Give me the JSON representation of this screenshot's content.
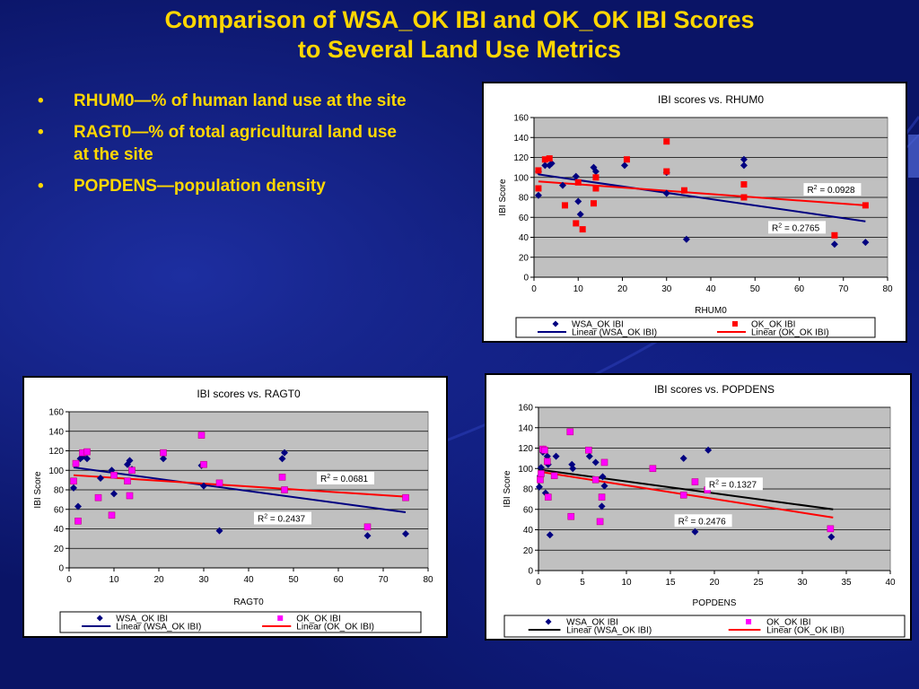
{
  "slide": {
    "title_line1": "Comparison of WSA_OK IBI and OK_OK IBI Scores",
    "title_line2": "to Several Land Use Metrics",
    "bullets": [
      "RHUM0—% of human land use at the site",
      "RAGT0—% of total agricultural land use at the site",
      "POPDENS—population density"
    ],
    "bullet_symbol": "•"
  },
  "colors": {
    "background": "#0a1466",
    "title": "#ffd700",
    "plot_area": "#c0c0c0",
    "wsa_marker": "#000080",
    "ok_marker_chart1": "#ff0000",
    "ok_marker_chart2_3": "#ff00ff",
    "trend_ok": "#ff0000",
    "trend_wsa_chart1_2": "#000080",
    "trend_wsa_chart3": "#000000"
  },
  "chart_data": [
    {
      "type": "scatter",
      "title": "IBI scores vs. RHUM0",
      "xlabel": "RHUM0",
      "ylabel": "IBI Score",
      "xlim": [
        0,
        80
      ],
      "ylim": [
        0,
        160
      ],
      "xticks": [
        0,
        10,
        20,
        30,
        40,
        50,
        60,
        70,
        80
      ],
      "yticks": [
        0,
        20,
        40,
        60,
        80,
        100,
        120,
        140,
        160
      ],
      "grid": true,
      "legend": "bottom",
      "series": [
        {
          "name": "WSA_OK IBI",
          "marker": "diamond",
          "x": [
            1,
            1,
            2.5,
            3.5,
            4,
            6.5,
            9.5,
            10,
            10.5,
            13.5,
            14,
            20.5,
            30,
            30,
            34.5,
            47.5,
            47.5,
            68,
            75
          ],
          "y": [
            106,
            82,
            112,
            112,
            114,
            92,
            101,
            76,
            63,
            110,
            106,
            112,
            84,
            105,
            38,
            112,
            118,
            33,
            35
          ]
        },
        {
          "name": "OK_OK IBI",
          "marker": "square",
          "x": [
            1,
            1,
            2.5,
            3.5,
            7,
            9.5,
            10,
            11,
            13.5,
            14,
            14,
            21,
            30,
            30,
            34,
            47.5,
            47.5,
            68,
            75
          ],
          "y": [
            107,
            89,
            118,
            119,
            72,
            54,
            95,
            48,
            74,
            89,
            100,
            118,
            106,
            136,
            87,
            80,
            93,
            42,
            72
          ]
        },
        {
          "name": "Linear (WSA_OK IBI)",
          "type": "line",
          "x": [
            1,
            75
          ],
          "y": [
            103,
            56
          ]
        },
        {
          "name": "Linear (OK_OK IBI)",
          "type": "line",
          "x": [
            1,
            75
          ],
          "y": [
            96,
            72
          ]
        }
      ],
      "annotations": [
        {
          "text": "R2 = 0.0928",
          "label": "R",
          "sup": "2",
          "value": " = 0.0928",
          "at": [
            74,
            88
          ]
        },
        {
          "text": "R2 = 0.2765",
          "label": "R",
          "sup": "2",
          "value": " = 0.2765",
          "at": [
            66,
            50
          ]
        }
      ]
    },
    {
      "type": "scatter",
      "title": "IBI scores vs. RAGT0",
      "xlabel": "RAGT0",
      "ylabel": "IBI Score",
      "xlim": [
        0,
        80
      ],
      "ylim": [
        0,
        160
      ],
      "xticks": [
        0,
        10,
        20,
        30,
        40,
        50,
        60,
        70,
        80
      ],
      "yticks": [
        0,
        20,
        40,
        60,
        80,
        100,
        120,
        140,
        160
      ],
      "grid": true,
      "legend": "bottom",
      "series": [
        {
          "name": "WSA_OK IBI",
          "marker": "diamond",
          "x": [
            1,
            1.5,
            2,
            2.5,
            3,
            4,
            7,
            9.5,
            10,
            13,
            13.5,
            14,
            21,
            29.5,
            30,
            33.5,
            47.5,
            48,
            66.5,
            75
          ],
          "y": [
            82,
            106,
            63,
            112,
            114,
            112,
            92,
            100,
            76,
            106,
            110,
            101,
            112,
            105,
            84,
            38,
            112,
            118,
            33,
            35
          ]
        },
        {
          "name": "OK_OK IBI",
          "marker": "square",
          "x": [
            1,
            1.5,
            2,
            3,
            4,
            6.5,
            9.5,
            10,
            13,
            13.5,
            14,
            21,
            29.5,
            30,
            33.5,
            47.5,
            48,
            66.5,
            75
          ],
          "y": [
            89,
            107,
            48,
            118,
            119,
            72,
            54,
            95,
            89,
            74,
            100,
            118,
            136,
            106,
            87,
            93,
            80,
            42,
            72
          ]
        },
        {
          "name": "Linear (WSA_OK IBI)",
          "type": "line",
          "x": [
            1,
            75
          ],
          "y": [
            103,
            57
          ]
        },
        {
          "name": "Linear (OK_OK IBI)",
          "type": "line",
          "x": [
            1,
            75
          ],
          "y": [
            95,
            73
          ]
        }
      ],
      "annotations": [
        {
          "text": "R2 = 0.0681",
          "label": "R",
          "sup": "2",
          "value": " = 0.0681",
          "at": [
            68,
            92
          ]
        },
        {
          "text": "R2 = 0.2437",
          "label": "R",
          "sup": "2",
          "value": " = 0.2437",
          "at": [
            54,
            51
          ]
        }
      ]
    },
    {
      "type": "scatter",
      "title": "IBI scores vs. POPDENS",
      "xlabel": "POPDENS",
      "ylabel": "IBI Score",
      "xlim": [
        0,
        40
      ],
      "ylim": [
        0,
        160
      ],
      "xticks": [
        0,
        5,
        10,
        15,
        20,
        25,
        30,
        35,
        40
      ],
      "yticks": [
        0,
        20,
        40,
        60,
        80,
        100,
        120,
        140,
        160
      ],
      "grid": true,
      "legend": "bottom",
      "series": [
        {
          "name": "WSA_OK IBI",
          "marker": "diamond",
          "x": [
            0.1,
            0.2,
            0.3,
            0.5,
            0.6,
            0.8,
            1.0,
            1.1,
            1.3,
            2.0,
            3.8,
            3.9,
            5.8,
            6.5,
            7.2,
            7.3,
            7.5,
            16.5,
            17.8,
            19.3,
            33.3
          ],
          "y": [
            82,
            93,
            101,
            116,
            119,
            76,
            112,
            104,
            35,
            112,
            104,
            100,
            112,
            106,
            63,
            92,
            83,
            110,
            38,
            118,
            33
          ]
        },
        {
          "name": "OK_OK IBI",
          "marker": "square",
          "x": [
            0.2,
            0.3,
            0.5,
            0.7,
            1.0,
            1.1,
            1.8,
            3.6,
            3.7,
            5.7,
            6.5,
            7.0,
            7.2,
            7.5,
            13.0,
            16.5,
            17.8,
            19.2,
            33.2
          ],
          "y": [
            89,
            95,
            119,
            118,
            107,
            72,
            93,
            136,
            53,
            118,
            89,
            48,
            72,
            106,
            100,
            74,
            87,
            79,
            41
          ]
        },
        {
          "name": "Linear (WSA_OK IBI)",
          "type": "line",
          "x": [
            0,
            33.5
          ],
          "y": [
            99,
            60
          ]
        },
        {
          "name": "Linear (OK_OK IBI)",
          "type": "line",
          "x": [
            0,
            33.5
          ],
          "y": [
            97,
            52
          ]
        }
      ],
      "annotations": [
        {
          "text": "R2 = 0.1327",
          "label": "R",
          "sup": "2",
          "value": " = 0.1327",
          "at": [
            25.5,
            85
          ]
        },
        {
          "text": "R2 = 0.2476",
          "label": "R",
          "sup": "2",
          "value": " = 0.2476",
          "at": [
            22,
            49
          ]
        }
      ]
    }
  ]
}
